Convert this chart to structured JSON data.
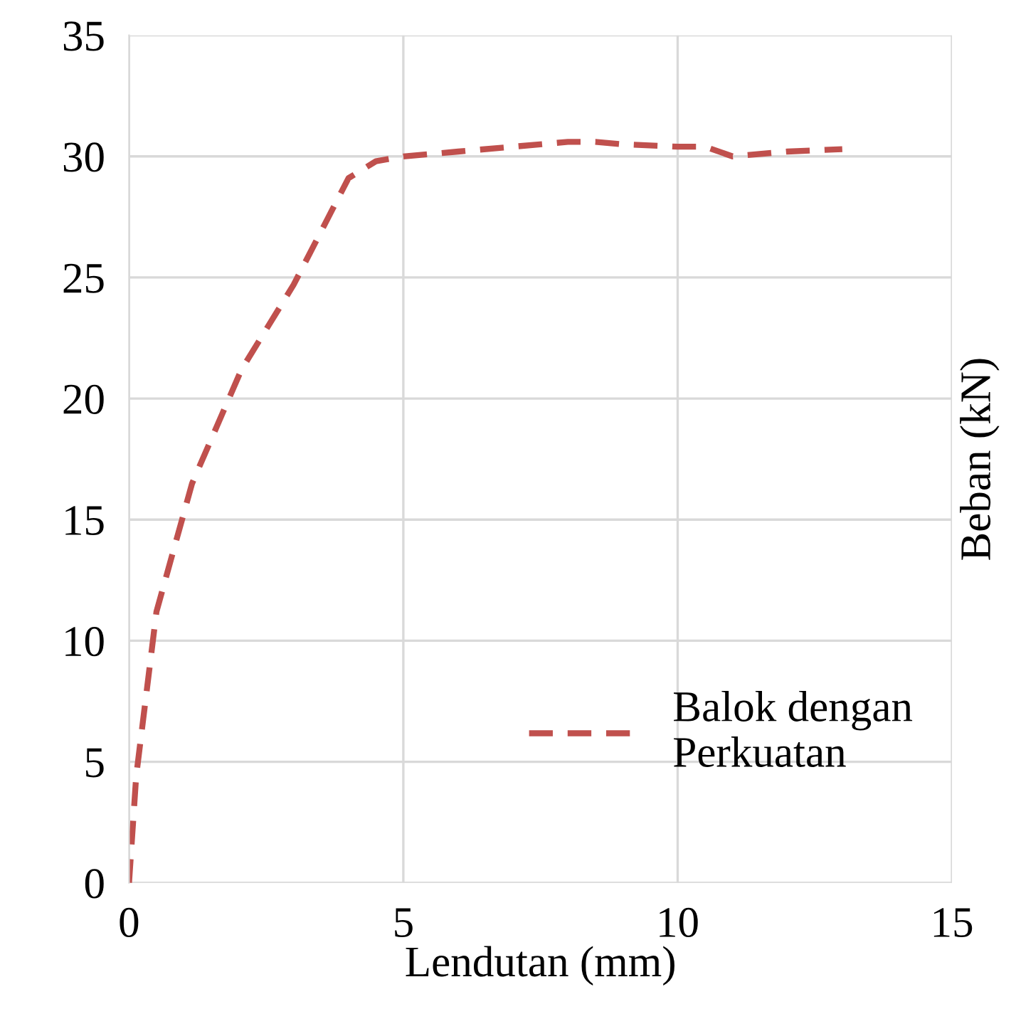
{
  "chart_data": {
    "type": "line",
    "xlabel": "Lendutan (mm)",
    "ylabel": "Beban (kN)",
    "xlim": [
      0,
      15
    ],
    "ylim": [
      0,
      35
    ],
    "xticks": [
      0,
      5,
      10,
      15
    ],
    "yticks": [
      0,
      5,
      10,
      15,
      20,
      25,
      30,
      35
    ],
    "grid": true,
    "legend": "bottom right",
    "line_style": "dashed",
    "series": [
      {
        "name": "Balok dengan\nPerkuatan",
        "color": "#c0504d",
        "x": [
          0,
          0.13,
          0.5,
          1.15,
          2.05,
          3.0,
          4.0,
          4.5,
          5.0,
          6.0,
          7.0,
          8.0,
          8.5,
          9.0,
          10.0,
          10.5,
          11.0,
          12.0,
          13.0
        ],
        "values": [
          0,
          4.4,
          11.2,
          16.5,
          21.2,
          24.7,
          29.1,
          29.8,
          30.0,
          30.2,
          30.4,
          30.6,
          30.6,
          30.5,
          30.4,
          30.4,
          30.0,
          30.2,
          30.3
        ]
      }
    ]
  }
}
